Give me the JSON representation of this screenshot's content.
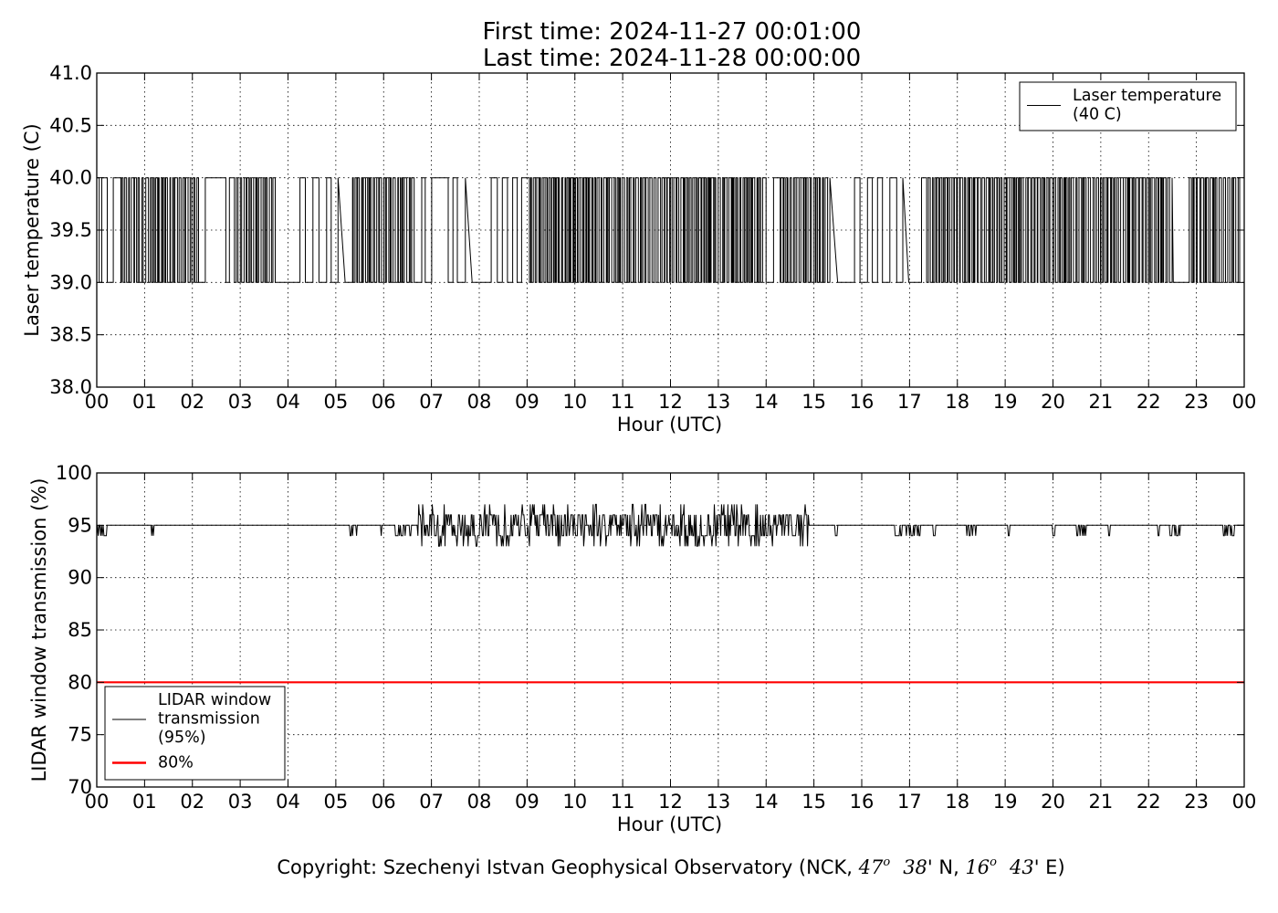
{
  "title_lines": [
    "First time: 2024-11-27 00:01:00",
    "Last time: 2024-11-28 00:00:00"
  ],
  "footer": {
    "prefix": "Copyright: Szechenyi Istvan Geophysical Observatory (NCK, ",
    "lat_deg": "47",
    "lat_min": "38",
    "lat_suffix": "' N, ",
    "lon_deg": "16",
    "lon_min": "43",
    "lon_suffix": "' E)",
    "degree_mark": "o"
  },
  "chart_data": [
    {
      "type": "line",
      "xlabel": "Hour (UTC)",
      "ylabel": "Laser temperature (C)",
      "xlim": [
        0,
        24
      ],
      "ylim": [
        38.0,
        41.0
      ],
      "xticks": [
        "00",
        "01",
        "02",
        "03",
        "04",
        "05",
        "06",
        "07",
        "08",
        "09",
        "10",
        "11",
        "12",
        "13",
        "14",
        "15",
        "16",
        "17",
        "18",
        "19",
        "20",
        "21",
        "22",
        "23",
        "00"
      ],
      "yticks": [
        "38.0",
        "38.5",
        "39.0",
        "39.5",
        "40.0",
        "40.5",
        "41.0"
      ],
      "grid": true,
      "legend": {
        "placement": "top-right"
      },
      "series": [
        {
          "name": "Laser temperature\n(40 C)",
          "color": "#000000",
          "values_note": "1-minute samples toggling between 39.0 and 40.0",
          "segments": [
            {
              "x": [
                0.0,
                0.03
              ],
              "y": [
                39.0,
                40.0
              ]
            },
            {
              "x": [
                0.3,
                0.31
              ],
              "y": [
                40.0,
                39.0
              ]
            },
            {
              "x": [
                2.3,
                2.5
              ],
              "y": [
                40.0,
                40.0
              ]
            },
            {
              "x": [
                4.0,
                4.1
              ],
              "y": [
                39.0,
                39.0
              ]
            },
            {
              "x": [
                7.1,
                7.35
              ],
              "y": [
                40.0,
                40.0
              ]
            },
            {
              "x": [
                7.9,
                8.2
              ],
              "y": [
                39.0,
                39.0
              ]
            },
            {
              "x": [
                15.3,
                15.9
              ],
              "y": [
                39.0,
                39.0
              ]
            },
            {
              "x": [
                16.95,
                17.2
              ],
              "y": [
                39.0,
                39.0
              ]
            },
            {
              "x": [
                22.5,
                22.8
              ],
              "y": [
                39.0,
                39.0
              ]
            }
          ]
        }
      ]
    },
    {
      "type": "line",
      "xlabel": "Hour (UTC)",
      "ylabel": "LIDAR window transmission (%)",
      "xlim": [
        0,
        24
      ],
      "ylim": [
        70,
        100
      ],
      "xticks": [
        "00",
        "01",
        "02",
        "03",
        "04",
        "05",
        "06",
        "07",
        "08",
        "09",
        "10",
        "11",
        "12",
        "13",
        "14",
        "15",
        "16",
        "17",
        "18",
        "19",
        "20",
        "21",
        "22",
        "23",
        "00"
      ],
      "yticks": [
        "70",
        "75",
        "80",
        "85",
        "90",
        "95",
        "100"
      ],
      "grid": true,
      "legend": {
        "placement": "bottom-left"
      },
      "series": [
        {
          "name": "LIDAR window\ntransmission\n(95%)",
          "color": "#000000",
          "baseline": 95,
          "min": 93,
          "max": 97,
          "noisy_interval": [
            6.7,
            14.9
          ]
        },
        {
          "name": "80%",
          "color": "#ff0000",
          "x": [
            0,
            24
          ],
          "y": [
            80,
            80
          ]
        }
      ]
    }
  ]
}
